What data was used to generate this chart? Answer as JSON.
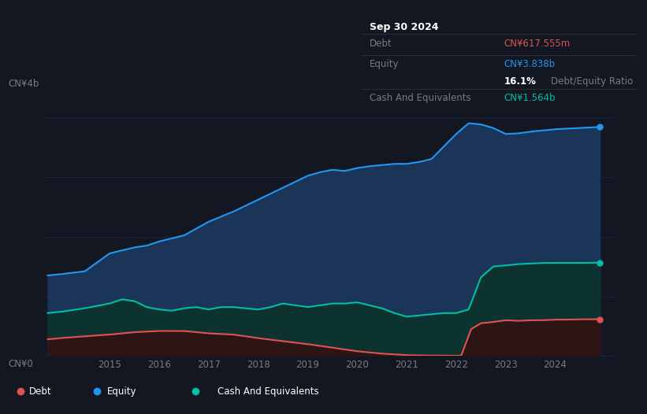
{
  "background_color": "#131722",
  "plot_bg_color": "#131722",
  "tooltip": {
    "date": "Sep 30 2024",
    "debt_label": "Debt",
    "debt_value": "CN¥617.555m",
    "equity_label": "Equity",
    "equity_value": "CN¥3.838b",
    "ratio_value": "16.1%",
    "ratio_label": "Debt/Equity Ratio",
    "cash_label": "Cash And Equivalents",
    "cash_value": "CN¥1.564b"
  },
  "ylabel_top": "CN¥4b",
  "ylabel_bottom": "CN¥0",
  "x_ticks": [
    2015,
    2016,
    2017,
    2018,
    2019,
    2020,
    2021,
    2022,
    2023,
    2024
  ],
  "ylim": [
    0,
    4.3
  ],
  "xlim": [
    2013.7,
    2025.2
  ],
  "equity_color": "#2196f3",
  "equity_fill": "#1a3558",
  "debt_color": "#e05252",
  "debt_fill": "#2d1515",
  "cash_color": "#00bfa5",
  "cash_fill": "#0d3330",
  "legend_bg": "#1c2030",
  "legend_border": "#3a3f55",
  "grid_color": "#1e2538",
  "tooltip_bg": "#070a0f",
  "tooltip_border": "#2a2e3d",
  "debt_color_text": "#e05252",
  "equity_color_text": "#2196f3",
  "cash_color_text": "#00bfa5",
  "white_text": "#ffffff",
  "gray_text": "#787b86",
  "legend_items": [
    {
      "color": "#e05252",
      "label": "Debt"
    },
    {
      "color": "#2196f3",
      "label": "Equity"
    },
    {
      "color": "#00bfa5",
      "label": "Cash And Equivalents"
    }
  ],
  "equity_x": [
    2013.75,
    2014.0,
    2014.5,
    2015.0,
    2015.5,
    2015.75,
    2016.0,
    2016.25,
    2016.5,
    2017.0,
    2017.5,
    2018.0,
    2018.5,
    2019.0,
    2019.25,
    2019.5,
    2019.75,
    2020.0,
    2020.25,
    2020.5,
    2020.75,
    2021.0,
    2021.25,
    2021.5,
    2022.0,
    2022.25,
    2022.5,
    2022.75,
    2023.0,
    2023.25,
    2023.5,
    2023.75,
    2024.0,
    2024.25,
    2024.5,
    2024.75,
    2024.9
  ],
  "equity_y": [
    1.35,
    1.37,
    1.42,
    1.72,
    1.82,
    1.85,
    1.92,
    1.97,
    2.02,
    2.25,
    2.42,
    2.62,
    2.82,
    3.02,
    3.08,
    3.12,
    3.1,
    3.15,
    3.18,
    3.2,
    3.22,
    3.22,
    3.25,
    3.3,
    3.72,
    3.9,
    3.88,
    3.82,
    3.72,
    3.73,
    3.76,
    3.78,
    3.8,
    3.81,
    3.82,
    3.83,
    3.838
  ],
  "cash_x": [
    2013.75,
    2014.0,
    2014.5,
    2015.0,
    2015.25,
    2015.5,
    2015.75,
    2016.0,
    2016.25,
    2016.5,
    2016.75,
    2017.0,
    2017.25,
    2017.5,
    2017.75,
    2018.0,
    2018.25,
    2018.5,
    2018.75,
    2019.0,
    2019.25,
    2019.5,
    2019.75,
    2020.0,
    2020.25,
    2020.5,
    2020.75,
    2021.0,
    2021.25,
    2021.5,
    2021.75,
    2022.0,
    2022.25,
    2022.5,
    2022.75,
    2023.0,
    2023.25,
    2023.5,
    2023.75,
    2024.0,
    2024.25,
    2024.5,
    2024.75,
    2024.9
  ],
  "cash_y": [
    0.72,
    0.74,
    0.8,
    0.88,
    0.95,
    0.92,
    0.82,
    0.78,
    0.76,
    0.8,
    0.82,
    0.78,
    0.82,
    0.82,
    0.8,
    0.78,
    0.82,
    0.88,
    0.85,
    0.82,
    0.85,
    0.88,
    0.88,
    0.9,
    0.85,
    0.8,
    0.72,
    0.66,
    0.68,
    0.7,
    0.72,
    0.72,
    0.78,
    1.32,
    1.5,
    1.52,
    1.54,
    1.55,
    1.56,
    1.56,
    1.56,
    1.56,
    1.563,
    1.564
  ],
  "debt_x": [
    2013.75,
    2014.0,
    2014.5,
    2015.0,
    2015.5,
    2016.0,
    2016.5,
    2017.0,
    2017.5,
    2018.0,
    2018.5,
    2019.0,
    2019.5,
    2020.0,
    2020.5,
    2021.0,
    2021.25,
    2021.5,
    2021.75,
    2022.0,
    2022.1,
    2022.3,
    2022.5,
    2022.75,
    2023.0,
    2023.25,
    2023.5,
    2023.75,
    2024.0,
    2024.25,
    2024.5,
    2024.75,
    2024.9
  ],
  "debt_y": [
    0.28,
    0.3,
    0.33,
    0.36,
    0.4,
    0.42,
    0.42,
    0.38,
    0.36,
    0.3,
    0.25,
    0.2,
    0.14,
    0.08,
    0.04,
    0.015,
    0.01,
    0.008,
    0.005,
    0.003,
    0.005,
    0.45,
    0.55,
    0.57,
    0.6,
    0.59,
    0.6,
    0.6,
    0.61,
    0.61,
    0.615,
    0.616,
    0.617
  ]
}
